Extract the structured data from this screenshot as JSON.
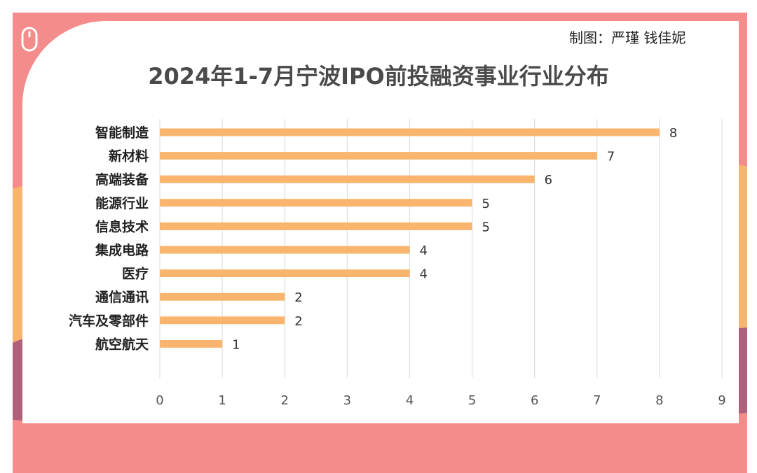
{
  "credit": "制图：严瑾 钱佳妮",
  "colors": {
    "bar": "#F9B56E",
    "frame_top": "#F48C8C",
    "frame_mid": "#F9B56E",
    "frame_bottom": "#B0607A",
    "grid": "#D9D9D9"
  },
  "icons": [
    "mouse-icon"
  ],
  "chart_data": {
    "type": "bar",
    "orientation": "horizontal",
    "title": "2024年1-7月宁波IPO前投融资事业行业分布",
    "categories": [
      "智能制造",
      "新材料",
      "高端装备",
      "能源行业",
      "信息技术",
      "集成电路",
      "医疗",
      "通信通讯",
      "汽车及零部件",
      "航空航天"
    ],
    "values": [
      8,
      7,
      6,
      5,
      5,
      4,
      4,
      2,
      2,
      1
    ],
    "xlim": [
      0,
      9
    ],
    "xticks": [
      "0",
      "1",
      "2",
      "3",
      "4",
      "5",
      "6",
      "7",
      "8",
      "9"
    ],
    "grid": true,
    "data_labels": true
  }
}
